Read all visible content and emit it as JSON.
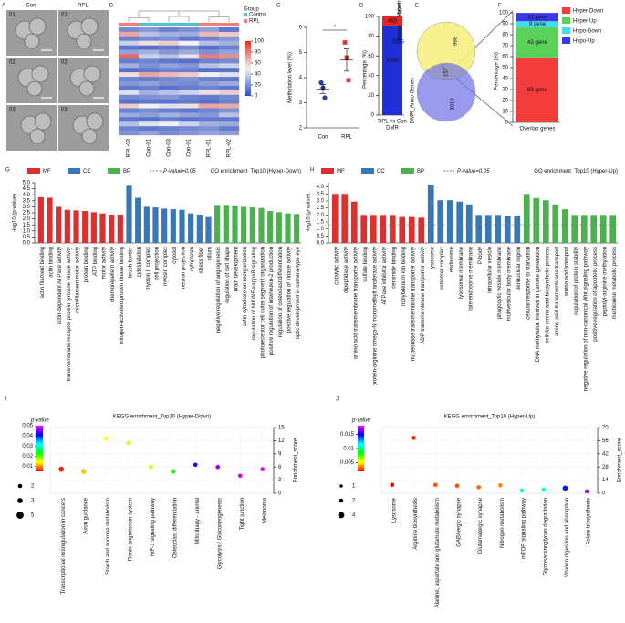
{
  "panel_a": {
    "panel": "A",
    "columns": [
      "Con",
      "RPL"
    ],
    "rows": [
      "01",
      "02",
      "03"
    ]
  },
  "chart_data": [
    {
      "type": "heatmap",
      "panel": "B",
      "columns": [
        "RPL-03",
        "Con-01",
        "Con-03",
        "Con-01",
        "RPL-01",
        "RPL-02"
      ],
      "column_group": [
        "RPL",
        "Control",
        "Control",
        "Control",
        "RPL",
        "RPL"
      ],
      "legend_title": "Group",
      "groups": [
        {
          "name": "Control",
          "color": "#4fc3c7"
        },
        {
          "name": "RPL",
          "color": "#ef7f72"
        }
      ],
      "zlim": [
        0,
        100
      ],
      "zticks": [
        0,
        20,
        40,
        60,
        80,
        100
      ],
      "values": [
        [
          18,
          22,
          15,
          20,
          25,
          12
        ],
        [
          70,
          35,
          30,
          28,
          65,
          60
        ],
        [
          15,
          18,
          20,
          12,
          16,
          22
        ],
        [
          40,
          55,
          60,
          50,
          35,
          30
        ],
        [
          12,
          10,
          14,
          18,
          11,
          15
        ],
        [
          25,
          30,
          22,
          28,
          20,
          26
        ],
        [
          85,
          40,
          35,
          45,
          80,
          75
        ],
        [
          14,
          16,
          12,
          10,
          15,
          18
        ],
        [
          30,
          20,
          25,
          22,
          35,
          40
        ],
        [
          10,
          12,
          15,
          14,
          10,
          11
        ],
        [
          55,
          70,
          65,
          60,
          50,
          45
        ],
        [
          16,
          14,
          18,
          20,
          15,
          13
        ],
        [
          22,
          25,
          20,
          18,
          24,
          28
        ],
        [
          12,
          15,
          10,
          14,
          16,
          12
        ],
        [
          45,
          30,
          35,
          40,
          55,
          60
        ],
        [
          18,
          20,
          22,
          16,
          14,
          17
        ],
        [
          10,
          12,
          11,
          13,
          10,
          15
        ],
        [
          60,
          50,
          45,
          55,
          70,
          68
        ],
        [
          15,
          18,
          14,
          12,
          16,
          20
        ],
        [
          28,
          24,
          30,
          26,
          22,
          35
        ],
        [
          12,
          10,
          14,
          11,
          13,
          12
        ],
        [
          35,
          45,
          50,
          40,
          30,
          28
        ],
        [
          16,
          12,
          15,
          18,
          20,
          14
        ],
        [
          20,
          25,
          18,
          22,
          26,
          24
        ]
      ]
    },
    {
      "type": "dot_mean",
      "panel": "C",
      "categories": [
        "Con",
        "RPL"
      ],
      "colors": [
        "#2d3da6",
        "#e03a30"
      ],
      "points": [
        [
          3.8,
          3.6,
          3.2
        ],
        [
          5.4,
          4.8,
          3.9
        ]
      ],
      "means": [
        3.55,
        4.7
      ],
      "errors": [
        0.18,
        0.44
      ],
      "ylabel": "Methylation level (%)",
      "ylim": [
        2,
        6
      ],
      "yticks": [
        2,
        3,
        4,
        5,
        6
      ],
      "annotation": "*"
    },
    {
      "type": "stacked_percent",
      "panel": "D",
      "categories": [
        "RPL vs Con"
      ],
      "xlabel": "DMR",
      "series": [
        {
          "name": "Hypomethylated",
          "color": "#1f2fd6",
          "values": [
            90.8
          ],
          "counts": [
            4760
          ]
        },
        {
          "name": "Hypermethylated",
          "color": "#e02424",
          "values": [
            9.2
          ],
          "counts": [
            483
          ]
        }
      ],
      "ylabel": "Percentage (%)",
      "ylim": [
        0,
        100
      ],
      "yticks": [
        0,
        20,
        40,
        60,
        80,
        100
      ]
    },
    {
      "type": "venn",
      "panel": "E",
      "sets": [
        {
          "name": "DEG",
          "color": "#f4ef7a"
        },
        {
          "name": "DMR_Anno Genes",
          "color": "#6e6ee6"
        }
      ],
      "only_a": 988,
      "both": 157,
      "only_b": 3019
    },
    {
      "type": "stacked_percent",
      "panel": "F",
      "categories": [
        "Overlap genes"
      ],
      "series": [
        {
          "name": "Hyper-Down",
          "color": "#f23c3c",
          "values": [
            59.2
          ],
          "count_labels": [
            "93 gene"
          ]
        },
        {
          "name": "Hyper-Up",
          "color": "#5ad25a",
          "values": [
            27.4
          ],
          "count_labels": [
            "43 gene"
          ]
        },
        {
          "name": "Hypo-Down",
          "color": "#3fdff0",
          "values": [
            5.7
          ],
          "count_labels": [
            "9 gene"
          ]
        },
        {
          "name": "Hypo-Up",
          "color": "#3a3ae0",
          "values": [
            7.6
          ],
          "count_labels": [
            "12 gene"
          ]
        }
      ],
      "ylabel": "Percentage (%)",
      "ylim": [
        0,
        100
      ],
      "yticks": [
        0,
        10,
        20,
        30,
        40,
        50,
        60,
        70,
        80,
        90,
        100
      ]
    },
    {
      "type": "bar_grouped",
      "panel": "G",
      "title": "GO enrichment_Top10 (Hyper-Down)",
      "ylabel": "-log10 (p-value)",
      "threshold": {
        "value": 1.3,
        "label": "P-value=0.05"
      },
      "ylim": [
        0,
        5
      ],
      "yticks": [
        {
          "value": 0,
          "label": "0.0"
        },
        0.5,
        {
          "value": 1,
          "label": "1.0"
        },
        1.5,
        {
          "value": 2,
          "label": "2.0"
        },
        2.5,
        {
          "value": 3,
          "label": "3.0"
        },
        3.5,
        {
          "value": 4,
          "label": "4.0"
        },
        4.5,
        {
          "value": 5,
          "label": "5.0"
        }
      ],
      "series": [
        {
          "name": "MF",
          "color": "#d93030",
          "categories": [
            "actin filament binding",
            "actin binding",
            "actin-dependent ATPase activity",
            "transmembrane receptor protein tyrosine kinase activity",
            "microfilament motor activity",
            "protein binding",
            "ATP binding",
            "motor activity",
            "chemorepellent activity",
            "mitogen-activated protein kinase binding"
          ],
          "values": [
            3.8,
            3.75,
            3.0,
            2.75,
            2.7,
            2.65,
            2.55,
            2.45,
            2.35,
            2.35
          ]
        },
        {
          "name": "CC",
          "color": "#3a78b5",
          "categories": [
            "brush border",
            "cytoskeleton",
            "myosin II complex",
            "cell projection",
            "myosin complex",
            "cytosol",
            "neuron projection",
            "cytoplasm",
            "stress fiber",
            "cilium"
          ],
          "values": [
            4.75,
            3.75,
            3.0,
            2.95,
            2.85,
            2.8,
            2.75,
            2.45,
            2.35,
            2.15
          ]
        },
        {
          "name": "BP",
          "color": "#4caf50",
          "categories": [
            "negative regulation of angiogenesis",
            "regulation of cell shape",
            "brain development",
            "actin cytoskeleton reorganization",
            "regulation of NIK/NF-kappaB signaling",
            "photoreceptor cell outer segment organization",
            "positive regulation of interleukin-2 production",
            "regulation of osteoclast differentiation",
            "positive regulation of kinase activity",
            "optic development in camera-type eye"
          ],
          "values": [
            3.15,
            3.15,
            3.1,
            3.0,
            2.95,
            2.9,
            2.65,
            2.55,
            2.45,
            2.4
          ]
        }
      ]
    },
    {
      "type": "bar_grouped",
      "panel": "H",
      "title": "GO enrichment_Top10 (Hyper-Up)",
      "ylabel": "-log10 (p-value)",
      "threshold": {
        "value": 1.3,
        "label": "P-value=0.05"
      },
      "ylim": [
        0,
        4.3
      ],
      "yticks": [
        {
          "value": 0,
          "label": "0.0"
        },
        0.5,
        {
          "value": 1,
          "label": "1.0"
        },
        1.5,
        {
          "value": 2,
          "label": "2.0"
        },
        2.5,
        {
          "value": 3,
          "label": "3.0"
        },
        3.5,
        {
          "value": 4,
          "label": "4.0"
        }
      ],
      "series": [
        {
          "name": "MF",
          "color": "#d93030",
          "categories": [
            "catalytic activity",
            "dipeptidase activity",
            "amino acid transmembrane transporter activity",
            "sulfate binding",
            "protein-arginine omega-N monomethyltransferase activity",
            "ATPase inhibitor activity",
            "ceramide binding",
            "molybdenum ion binding",
            "nucleobase transmembrane transporter activity",
            "ADP transmembrane transporter activity"
          ],
          "values": [
            3.5,
            3.5,
            2.95,
            2.0,
            2.0,
            2.0,
            2.0,
            1.85,
            1.85,
            1.8
          ]
        },
        {
          "name": "CC",
          "color": "#3a78b5",
          "categories": [
            "lysosome",
            "retromer complex",
            "endosome",
            "lysosomal membrane",
            "late endosome membrane",
            "P-body",
            "intracellular vesicle",
            "phagocytic vesicle membrane",
            "multivesicular body membrane",
            "perinuclear region"
          ],
          "values": [
            4.15,
            3.05,
            3.05,
            2.95,
            2.75,
            2.0,
            2.0,
            2.0,
            1.95,
            1.95
          ]
        },
        {
          "name": "BP",
          "color": "#4caf50",
          "categories": [
            "cellular response to starvation",
            "DNA methylation involved in gamete generation",
            "cellular amino acid biosynthetic process",
            "amino acid transmembrane transport",
            "amino acid transport",
            "regulation of protein stability",
            "negative regulation of non-canonical Wnt signaling pathway",
            "positive regulation of apoptotic process",
            "peptidyl-arginine methylation",
            "methionine metabolic process"
          ],
          "values": [
            3.5,
            3.2,
            3.05,
            2.75,
            2.4,
            2.0,
            2.0,
            2.0,
            2.0,
            2.0
          ]
        }
      ]
    },
    {
      "type": "bubble",
      "panel": "I",
      "title": "KEGG enrichment_Top10 (Hyper-Down)",
      "ylabel": "Enrichment_score",
      "categories": [
        "Transcriptional misregulation in cancers",
        "Axon guidance",
        "Starch and sucrose metabolism",
        "Renin-angiotensin system",
        "HIF-1 signaling pathway",
        "Osteoclast differentiation",
        "Mitophagy - animal",
        "Glycolysis / Gluconeogenesis",
        "Tight junction",
        "Melanoma"
      ],
      "values": [
        5.5,
        5.0,
        12.5,
        11.5,
        6.0,
        5.0,
        6.5,
        6.0,
        4.0,
        5.5
      ],
      "pvalues": [
        0.006,
        0.012,
        0.014,
        0.015,
        0.016,
        0.023,
        0.042,
        0.046,
        0.048,
        0.049
      ],
      "sizes": [
        3,
        3,
        2,
        2,
        2,
        2,
        2,
        2,
        2,
        2
      ],
      "ylim": [
        0,
        15
      ],
      "yticks": [
        0,
        3,
        6,
        9,
        12,
        15
      ],
      "color_title": "p-value",
      "clim": [
        0.005,
        0.05
      ],
      "cticks": [
        0.01,
        0.02,
        0.03,
        0.04,
        0.05
      ],
      "size_legend": [
        2,
        3,
        5
      ]
    },
    {
      "type": "bubble",
      "panel": "J",
      "title": "KEGG enrichment_Top10 (Hyper-Up)",
      "ylabel": "Enrichment_score",
      "categories": [
        "Lysosome",
        "Arginine biosynthesis",
        "Alanine, aspartate and glutamate metabolism",
        "GABAergic synapse",
        "Glutamatergic synapse",
        "Nitrogen metabolism",
        "mTOR signaling pathway",
        "Glycosaminoglycan degradation",
        "Vitamin digestion and absorption",
        "Folate biosynthesis"
      ],
      "values": [
        9,
        59,
        9,
        8,
        6.5,
        8.5,
        3,
        4,
        5.5,
        2
      ],
      "pvalues": [
        0.002,
        0.0025,
        0.003,
        0.003,
        0.0033,
        0.0037,
        0.011,
        0.0115,
        0.0145,
        0.017
      ],
      "sizes": [
        2,
        2,
        2,
        2,
        2,
        2,
        2,
        2,
        3,
        2
      ],
      "ylim": [
        0,
        70
      ],
      "yticks": [
        0,
        14,
        28,
        42,
        56,
        70
      ],
      "color_title": "p-value",
      "clim": [
        0.002,
        0.018
      ],
      "cticks": [
        0.005,
        0.01,
        0.015
      ],
      "size_legend": [
        1,
        2,
        4
      ]
    }
  ]
}
